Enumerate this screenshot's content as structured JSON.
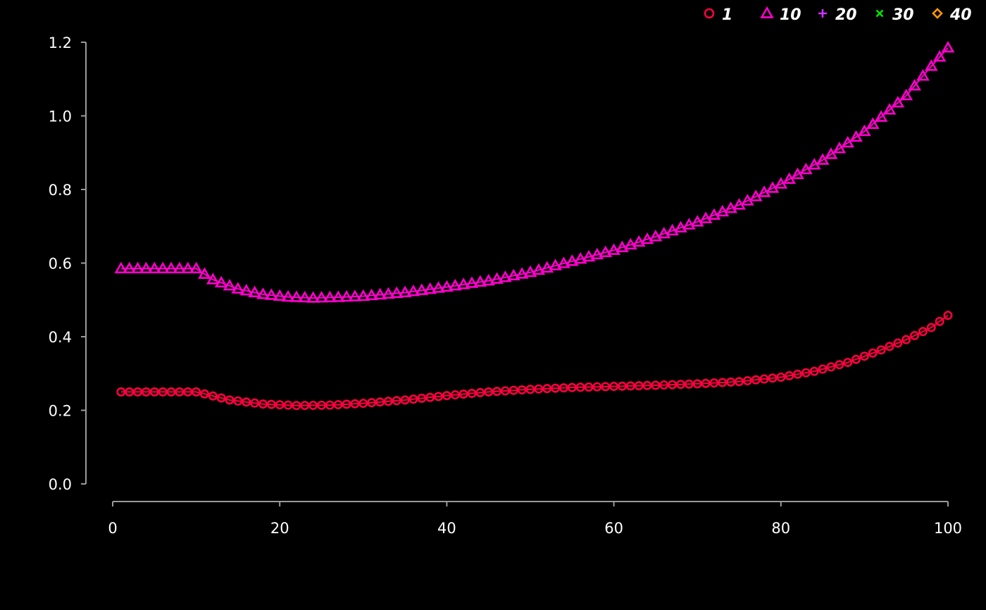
{
  "chart_data": {
    "type": "scatter",
    "x": {
      "start": 1,
      "end": 100,
      "step": 1
    },
    "xlim": [
      0,
      100
    ],
    "ylim": [
      0,
      1.2
    ],
    "xticks": [
      0,
      20,
      40,
      60,
      80,
      100
    ],
    "yticks": [
      0.0,
      0.2,
      0.4,
      0.6,
      0.8,
      1.0,
      1.2
    ],
    "xtick_labels": [
      "0",
      "20",
      "40",
      "60",
      "80",
      "100"
    ],
    "ytick_labels": [
      "0.0",
      "0.2",
      "0.4",
      "0.6",
      "0.8",
      "1.0",
      "1.2"
    ],
    "xlabel": "",
    "ylabel": "",
    "title": "",
    "grid": false,
    "legend": {
      "placement": "top-right",
      "orientation": "horizontal"
    },
    "series": [
      {
        "name": "1",
        "marker": "circle",
        "color": "#ff0040",
        "keypoints": [
          [
            1,
            0.25
          ],
          [
            10,
            0.25
          ],
          [
            14,
            0.228
          ],
          [
            18,
            0.217
          ],
          [
            22,
            0.213
          ],
          [
            26,
            0.214
          ],
          [
            30,
            0.219
          ],
          [
            35,
            0.228
          ],
          [
            40,
            0.24
          ],
          [
            45,
            0.25
          ],
          [
            50,
            0.257
          ],
          [
            55,
            0.262
          ],
          [
            60,
            0.265
          ],
          [
            65,
            0.268
          ],
          [
            70,
            0.272
          ],
          [
            75,
            0.278
          ],
          [
            80,
            0.29
          ],
          [
            84,
            0.306
          ],
          [
            88,
            0.33
          ],
          [
            92,
            0.364
          ],
          [
            95,
            0.392
          ],
          [
            98,
            0.425
          ],
          [
            100,
            0.458
          ]
        ]
      },
      {
        "name": "10",
        "marker": "triangle",
        "color": "#ff00cc",
        "keypoints": [
          [
            1,
            0.585
          ],
          [
            10,
            0.585
          ],
          [
            12,
            0.555
          ],
          [
            15,
            0.53
          ],
          [
            18,
            0.515
          ],
          [
            21,
            0.508
          ],
          [
            24,
            0.505
          ],
          [
            27,
            0.507
          ],
          [
            30,
            0.51
          ],
          [
            35,
            0.52
          ],
          [
            40,
            0.535
          ],
          [
            45,
            0.552
          ],
          [
            50,
            0.575
          ],
          [
            55,
            0.605
          ],
          [
            60,
            0.635
          ],
          [
            65,
            0.672
          ],
          [
            70,
            0.712
          ],
          [
            75,
            0.758
          ],
          [
            80,
            0.815
          ],
          [
            85,
            0.88
          ],
          [
            90,
            0.958
          ],
          [
            95,
            1.055
          ],
          [
            98,
            1.135
          ],
          [
            100,
            1.185
          ]
        ]
      },
      {
        "name": "20",
        "marker": "plus",
        "color": "#cc33ff",
        "keypoints": []
      },
      {
        "name": "30",
        "marker": "cross",
        "color": "#00e600",
        "keypoints": []
      },
      {
        "name": "40",
        "marker": "diamond",
        "color": "#ff9900",
        "keypoints": []
      }
    ]
  }
}
